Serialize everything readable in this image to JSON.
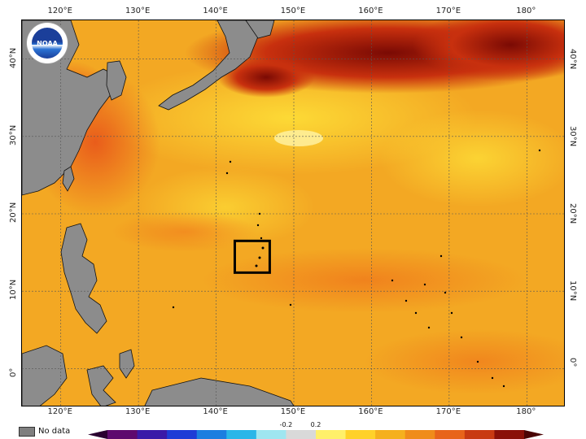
{
  "map": {
    "longitude_labels_top": [
      "120°E",
      "130°E",
      "140°E",
      "150°E",
      "160°E",
      "170°E",
      "180°"
    ],
    "longitude_labels_bottom": [
      "120°E",
      "130°E",
      "140°E",
      "150°E",
      "160°E",
      "170°E",
      "180°"
    ],
    "latitude_labels_left": [
      "40°N",
      "30°N",
      "20°N",
      "10°N",
      "0°"
    ],
    "latitude_labels_right": [
      "40°N",
      "30°N",
      "20°N",
      "10°N",
      "0°"
    ],
    "extent_degrees": {
      "lon_min": 115,
      "lon_max": 185,
      "lat_min": -5,
      "lat_max": 45
    },
    "highlight_box": {
      "lon_min": 142.4,
      "lon_max": 146.9,
      "lat_min": 12.4,
      "lat_max": 16.5
    },
    "land_color": "#8c8c8c",
    "ocean_base_color": "#f2a623",
    "gridline_color": "#555555"
  },
  "logo": {
    "text": "NOAA",
    "name": "noaa-logo"
  },
  "legend": {
    "no_data_label": "No data",
    "no_data_color": "#7f7f7f",
    "center_labels": [
      "-0.2",
      "0.2"
    ],
    "colors": [
      "#2a0030",
      "#5e0a6e",
      "#3a1aa8",
      "#1e3cd6",
      "#1c7ee0",
      "#2ab6e8",
      "#9fe6f0",
      "#d9d9d9",
      "#fff06a",
      "#ffd12a",
      "#f5b01e",
      "#f08c1a",
      "#e8641a",
      "#c83a12",
      "#8a1008",
      "#4a0404"
    ]
  }
}
